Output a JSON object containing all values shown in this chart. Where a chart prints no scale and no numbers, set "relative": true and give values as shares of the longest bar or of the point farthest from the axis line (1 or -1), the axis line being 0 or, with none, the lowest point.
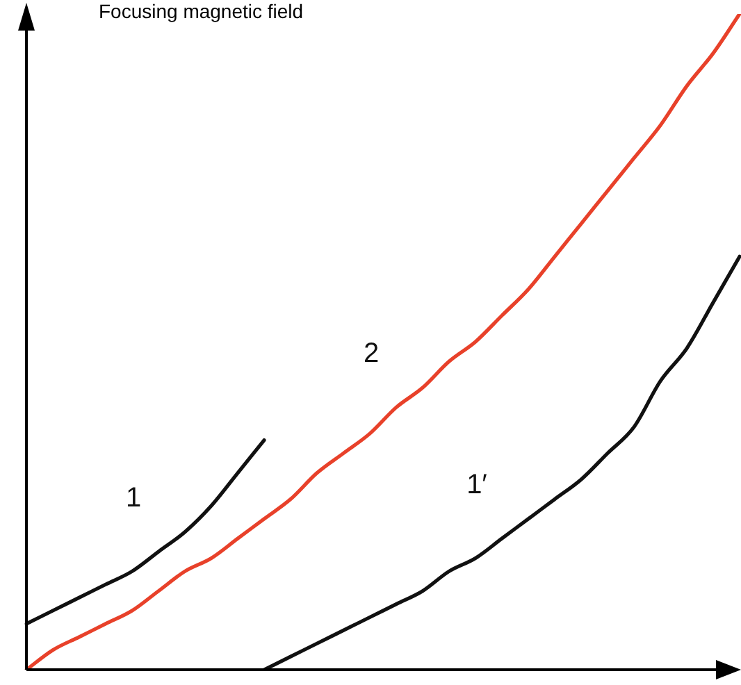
{
  "chart_data": {
    "type": "line",
    "relative": true,
    "ylabel": "Focusing magnetic field",
    "legend": false,
    "grid": false,
    "marker": "none",
    "line_style": "solid",
    "categories": [
      null,
      null,
      null,
      null,
      null,
      null,
      null,
      null,
      null,
      null,
      null,
      null,
      null,
      null,
      null,
      null,
      null,
      null,
      null,
      null,
      null,
      null,
      null,
      null,
      null,
      null,
      null,
      null
    ],
    "series": [
      {
        "name": "1",
        "color": "#111111",
        "values": [
          0.07,
          0.09,
          0.11,
          0.13,
          0.15,
          0.18,
          0.21,
          0.25,
          0.3,
          0.35,
          null,
          null,
          null,
          null,
          null,
          null,
          null,
          null,
          null,
          null,
          null,
          null,
          null,
          null,
          null,
          null,
          null,
          null
        ]
      },
      {
        "name": "2",
        "color": "#e8412a",
        "values": [
          0.0,
          0.03,
          0.05,
          0.07,
          0.09,
          0.12,
          0.15,
          0.17,
          0.2,
          0.23,
          0.26,
          0.3,
          0.33,
          0.36,
          0.4,
          0.43,
          0.47,
          0.5,
          0.54,
          0.58,
          0.63,
          0.68,
          0.73,
          0.78,
          0.83,
          0.89,
          0.94,
          1.0
        ]
      },
      {
        "name": "1′",
        "color": "#111111",
        "values": [
          null,
          null,
          null,
          null,
          null,
          null,
          null,
          null,
          null,
          0,
          0.02,
          0.04,
          0.06,
          0.08,
          0.1,
          0.12,
          0.15,
          0.17,
          0.2,
          0.23,
          0.26,
          0.29,
          0.33,
          0.37,
          0.44,
          0.49,
          0.56,
          0.63
        ]
      }
    ]
  }
}
